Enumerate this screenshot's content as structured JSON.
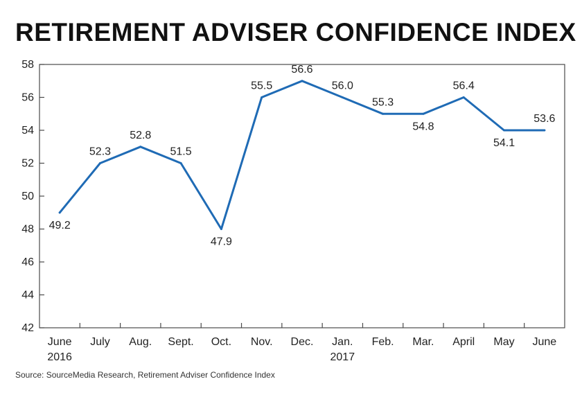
{
  "chart_data": {
    "type": "line",
    "title": "RETIREMENT ADVISER CONFIDENCE INDEX",
    "categories": [
      [
        "June",
        "2016"
      ],
      [
        "July"
      ],
      [
        "Aug."
      ],
      [
        "Sept."
      ],
      [
        "Oct."
      ],
      [
        "Nov."
      ],
      [
        "Dec."
      ],
      [
        "Jan.",
        "2017"
      ],
      [
        "Feb."
      ],
      [
        "Mar."
      ],
      [
        "April"
      ],
      [
        "May"
      ],
      [
        "June"
      ]
    ],
    "series": [
      {
        "name": "Retirement Adviser Confidence Index",
        "values": [
          49.0,
          52.0,
          53.0,
          52.0,
          48.0,
          56.0,
          57.0,
          56.0,
          55.0,
          55.0,
          56.0,
          54.0,
          54.0
        ],
        "labels": [
          "49.2",
          "52.3",
          "52.8",
          "51.5",
          "47.9",
          "55.5",
          "56.6",
          "56.0",
          "55.3",
          "54.8",
          "56.4",
          "54.1",
          "53.6"
        ],
        "label_positions": [
          "below",
          "above",
          "above",
          "above",
          "below",
          "above",
          "above",
          "above",
          "above",
          "below",
          "above",
          "below",
          "above"
        ]
      }
    ],
    "ylim": [
      42,
      58
    ],
    "yticks": [
      42,
      44,
      46,
      48,
      50,
      52,
      54,
      56,
      58
    ],
    "xlabel": "",
    "ylabel": "",
    "grid": false,
    "line_color": "#1f6bb5",
    "source": "Source: SourceMedia Research, Retirement Adviser Confidence Index"
  }
}
